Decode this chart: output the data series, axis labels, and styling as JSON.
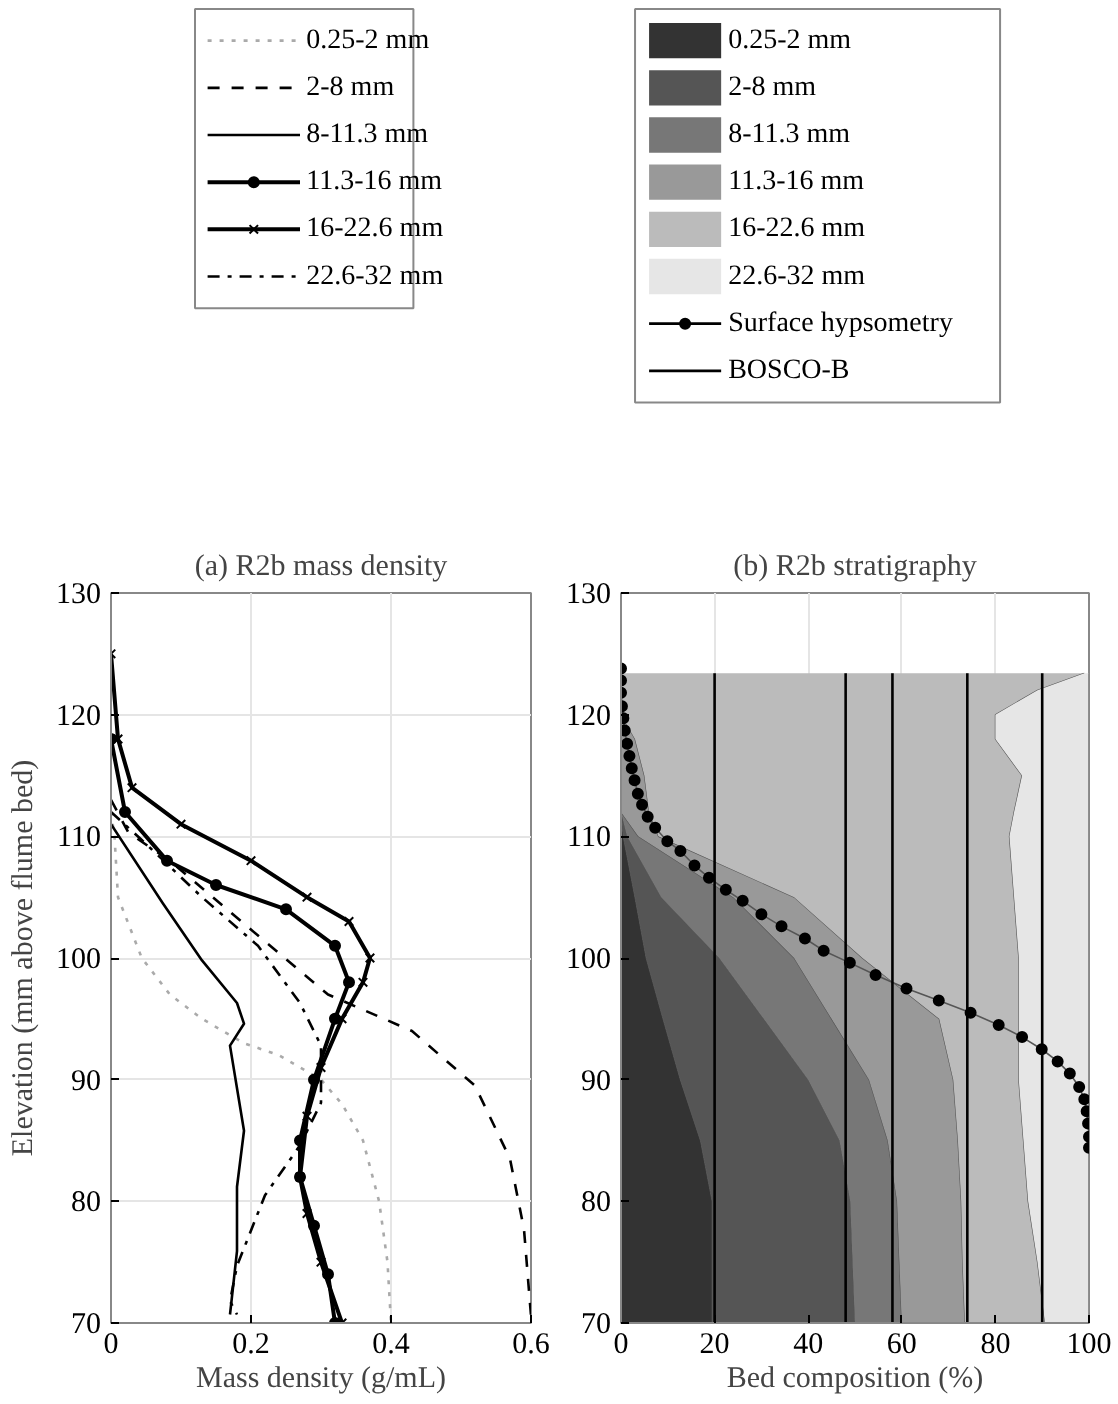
{
  "chart_data": [
    {
      "type": "line",
      "orientation": "horizontal",
      "title": "(a) R2b mass density",
      "xlabel": "Mass density (g/mL)",
      "ylabel": "Elevation (mm above flume bed)",
      "xlim": [
        0,
        0.6
      ],
      "xticks": [
        0,
        0.2,
        0.4,
        0.6
      ],
      "ylim": [
        70,
        130
      ],
      "yticks": [
        70,
        80,
        90,
        100,
        110,
        120,
        130
      ],
      "grid": true,
      "legend": "top",
      "series": [
        {
          "name": "0.25-2 mm",
          "color": "#aaaaaa",
          "line_style": "dotted",
          "x": [
            112,
            110,
            105,
            100,
            97,
            95,
            93,
            92,
            90,
            88,
            85,
            80,
            75,
            70
          ],
          "values": [
            0,
            0.005,
            0.01,
            0.044,
            0.084,
            0.13,
            0.19,
            0.24,
            0.3,
            0.33,
            0.36,
            0.383,
            0.395,
            0.4
          ]
        },
        {
          "name": "2-8 mm",
          "color": "#000000",
          "line_style": "dashed",
          "x": [
            113,
            110.3,
            108,
            103.3,
            97,
            94,
            89.5,
            83.5,
            77.7,
            70.6
          ],
          "values": [
            0,
            0.025,
            0.084,
            0.18,
            0.31,
            0.43,
            0.52,
            0.57,
            0.59,
            0.6
          ]
        },
        {
          "name": "8-11.3 mm",
          "color": "#000000",
          "line_style": "solid",
          "x": [
            111,
            104.5,
            99.8,
            96.3,
            94.6,
            92.8,
            89.3,
            85.8,
            81.2,
            75.9,
            70.7
          ],
          "values": [
            0,
            0.074,
            0.13,
            0.18,
            0.19,
            0.17,
            0.18,
            0.19,
            0.18,
            0.18,
            0.17
          ]
        },
        {
          "name": "11.3-16 mm",
          "color": "#000000",
          "line_style": "solid",
          "marker": "circle",
          "x": [
            118,
            112,
            108,
            106,
            104,
            101,
            98,
            95,
            90,
            85,
            82,
            78,
            74,
            70
          ],
          "values": [
            0,
            0.02,
            0.08,
            0.15,
            0.25,
            0.32,
            0.34,
            0.32,
            0.29,
            0.27,
            0.27,
            0.29,
            0.31,
            0.32
          ]
        },
        {
          "name": "16-22.6 mm",
          "color": "#000000",
          "line_style": "solid",
          "marker": "cross",
          "x": [
            125,
            118,
            114,
            111,
            108,
            105,
            103,
            100,
            98,
            95,
            91,
            87,
            82,
            79,
            75,
            70
          ],
          "values": [
            0,
            0.01,
            0.03,
            0.1,
            0.2,
            0.28,
            0.34,
            0.37,
            0.36,
            0.33,
            0.3,
            0.28,
            0.27,
            0.28,
            0.3,
            0.33
          ]
        },
        {
          "name": "22.6-32 mm",
          "color": "#000000",
          "line_style": "dashdot",
          "x": [
            112,
            109.7,
            105,
            101,
            96.3,
            92.8,
            88.1,
            84.6,
            80.5,
            74.7,
            71.8,
            70.7
          ],
          "values": [
            0,
            0.044,
            0.13,
            0.21,
            0.27,
            0.3,
            0.3,
            0.27,
            0.22,
            0.18,
            0.17,
            0.18
          ]
        }
      ]
    },
    {
      "type": "area",
      "stacked": true,
      "orientation": "horizontal",
      "title": "(b) R2b stratigraphy",
      "xlabel": "Bed composition (%)",
      "xlim": [
        0,
        100
      ],
      "xticks": [
        0,
        20,
        40,
        60,
        80,
        100
      ],
      "ylim": [
        70,
        130
      ],
      "yticks": [
        70,
        80,
        90,
        100,
        110,
        120,
        130
      ],
      "grid": true,
      "legend": "top",
      "x": [
        70,
        75,
        80,
        85,
        90,
        95,
        100,
        105,
        110,
        112,
        115,
        118,
        120,
        122,
        123.4
      ],
      "series": [
        {
          "name": "0.25-2 mm",
          "color": "#333333",
          "values": [
            19.5,
            19.5,
            19.5,
            17,
            12.7,
            9,
            5.4,
            3,
            0.5,
            0,
            0,
            0,
            0,
            0,
            0
          ]
        },
        {
          "name": "2-8 mm",
          "color": "#555555",
          "values": [
            30.5,
            30,
            29.5,
            29.7,
            27.3,
            21.5,
            15.6,
            5.6,
            0.8,
            0,
            0,
            0,
            0,
            0,
            0
          ]
        },
        {
          "name": "8-11.3 mm",
          "color": "#777777",
          "values": [
            10,
            10,
            10,
            10.3,
            13,
            14.5,
            16,
            15.4,
            2.4,
            0,
            0,
            0,
            0,
            0,
            0
          ]
        },
        {
          "name": "11.3-16 mm",
          "color": "#999999",
          "values": [
            13.5,
            13.5,
            13.7,
            15,
            18,
            23,
            14.6,
            13,
            4.3,
            6,
            5,
            3,
            0,
            0,
            0
          ]
        },
        {
          "name": "16-22.6 mm",
          "color": "#bbbbbb",
          "values": [
            17.1,
            16,
            14.3,
            14,
            14,
            17,
            33.4,
            47,
            75,
            78,
            80.7,
            77,
            80,
            89,
            99
          ]
        },
        {
          "name": "22.6-32 mm",
          "color": "#e6e6e6",
          "values": [
            9.4,
            11,
            13,
            14,
            15,
            15,
            15,
            16,
            17,
            16,
            14.3,
            20,
            20,
            11,
            1
          ]
        },
        {
          "name": "Surface hypsometry",
          "type": "line",
          "color": "#000000",
          "marker": "circle",
          "x": [
            123.8,
            122.8,
            121.8,
            120.7,
            119.7,
            118.7,
            117.6,
            116.6,
            115.6,
            114.6,
            113.5,
            112.6,
            111.6,
            110.7,
            109.6,
            108.8,
            107.6,
            106.6,
            105.6,
            104.7,
            103.6,
            102.6,
            101.6,
            100.6,
            99.6,
            98.6,
            97.5,
            96.5,
            95.5,
            94.5,
            93.5,
            92.5,
            91.5,
            90.5,
            89.4,
            88.4,
            87.4,
            86.4,
            85.3,
            84.4
          ],
          "values": [
            0,
            0,
            0,
            0.2,
            0.5,
            0.8,
            1.3,
            1.8,
            2.3,
            2.9,
            3.6,
            4.5,
            5.7,
            7.3,
            9.9,
            12.7,
            15.7,
            18.8,
            22.4,
            26,
            30,
            34.3,
            39.3,
            43.3,
            48.9,
            54.4,
            61,
            67.9,
            74.7,
            80.7,
            85.7,
            89.9,
            93.3,
            95.9,
            97.9,
            99,
            99.5,
            99.8,
            100,
            100
          ]
        },
        {
          "name": "BOSCO-B",
          "type": "line",
          "color": "#000000",
          "x": [
            70,
            123.4
          ],
          "values": [
            20,
            20
          ]
        },
        {
          "type": "line",
          "color": "#000000",
          "x": [
            70,
            123.4
          ],
          "values": [
            48,
            48
          ]
        },
        {
          "type": "line",
          "color": "#000000",
          "x": [
            70,
            123.4
          ],
          "values": [
            58,
            58
          ]
        },
        {
          "type": "line",
          "color": "#000000",
          "x": [
            70,
            123.4
          ],
          "values": [
            74,
            74
          ]
        },
        {
          "type": "line",
          "color": "#000000",
          "x": [
            70,
            123.4
          ],
          "values": [
            90,
            90
          ]
        }
      ]
    }
  ]
}
